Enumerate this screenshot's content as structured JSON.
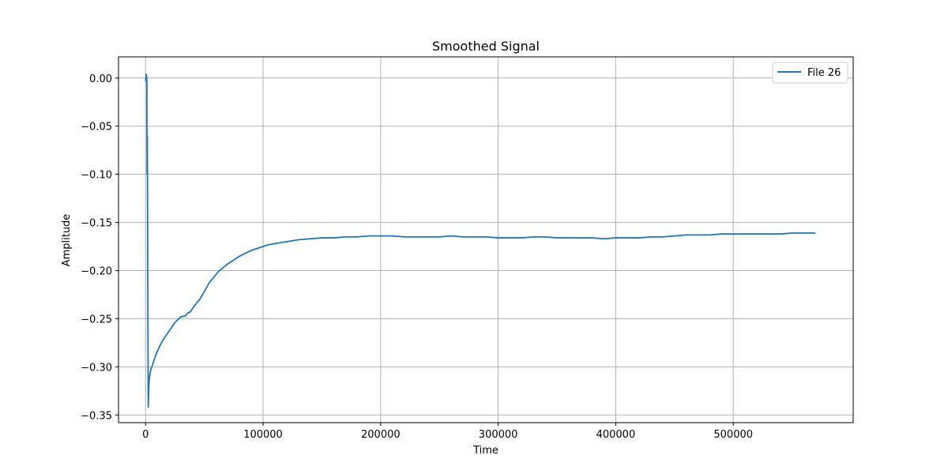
{
  "chart_data": {
    "type": "line",
    "title": "Smoothed Signal",
    "xlabel": "Time",
    "ylabel": "Amplitude",
    "xlim": [
      -23000,
      602000
    ],
    "ylim": [
      -0.358,
      0.022
    ],
    "x_ticks": [
      0,
      100000,
      200000,
      300000,
      400000,
      500000
    ],
    "x_tick_labels": [
      "0",
      "100000",
      "200000",
      "300000",
      "400000",
      "500000"
    ],
    "y_ticks": [
      0.0,
      -0.05,
      -0.1,
      -0.15,
      -0.2,
      -0.25,
      -0.3,
      -0.35
    ],
    "y_tick_labels": [
      "0.00",
      "−0.05",
      "−0.10",
      "−0.15",
      "−0.20",
      "−0.25",
      "−0.30",
      "−0.35"
    ],
    "grid": true,
    "legend_position": "top-right",
    "series": [
      {
        "name": "File 26",
        "color": "#1f77b4",
        "x": [
          0,
          300,
          600,
          900,
          1100,
          1300,
          1500,
          1700,
          1900,
          2100,
          2300,
          2600,
          3000,
          4000,
          6000,
          8000,
          10000,
          13000,
          16000,
          20000,
          25000,
          30000,
          34000,
          36000,
          38000,
          42000,
          46000,
          50000,
          54000,
          58000,
          62000,
          66000,
          70000,
          75000,
          80000,
          85000,
          90000,
          95000,
          100000,
          105000,
          110000,
          115000,
          120000,
          125000,
          130000,
          140000,
          150000,
          160000,
          170000,
          180000,
          190000,
          200000,
          210000,
          220000,
          230000,
          240000,
          250000,
          260000,
          270000,
          280000,
          290000,
          300000,
          310000,
          320000,
          330000,
          340000,
          350000,
          360000,
          370000,
          380000,
          390000,
          400000,
          410000,
          420000,
          430000,
          440000,
          450000,
          460000,
          470000,
          480000,
          490000,
          500000,
          510000,
          520000,
          530000,
          540000,
          550000,
          560000,
          570000
        ],
        "values": [
          0.0,
          -0.003,
          0.004,
          0.001,
          -0.005,
          -0.1,
          -0.06,
          -0.11,
          -0.2,
          -0.28,
          -0.342,
          -0.33,
          -0.315,
          -0.305,
          -0.298,
          -0.29,
          -0.284,
          -0.276,
          -0.27,
          -0.263,
          -0.254,
          -0.248,
          -0.247,
          -0.244,
          -0.243,
          -0.236,
          -0.23,
          -0.222,
          -0.213,
          -0.207,
          -0.201,
          -0.197,
          -0.193,
          -0.189,
          -0.185,
          -0.182,
          -0.179,
          -0.177,
          -0.175,
          -0.173,
          -0.172,
          -0.171,
          -0.17,
          -0.169,
          -0.168,
          -0.167,
          -0.166,
          -0.166,
          -0.165,
          -0.165,
          -0.164,
          -0.164,
          -0.164,
          -0.165,
          -0.165,
          -0.165,
          -0.165,
          -0.164,
          -0.165,
          -0.165,
          -0.165,
          -0.166,
          -0.166,
          -0.166,
          -0.165,
          -0.165,
          -0.166,
          -0.166,
          -0.166,
          -0.166,
          -0.167,
          -0.166,
          -0.166,
          -0.166,
          -0.165,
          -0.165,
          -0.164,
          -0.163,
          -0.163,
          -0.163,
          -0.162,
          -0.162,
          -0.162,
          -0.162,
          -0.162,
          -0.162,
          -0.161,
          -0.161,
          -0.161
        ]
      }
    ]
  }
}
